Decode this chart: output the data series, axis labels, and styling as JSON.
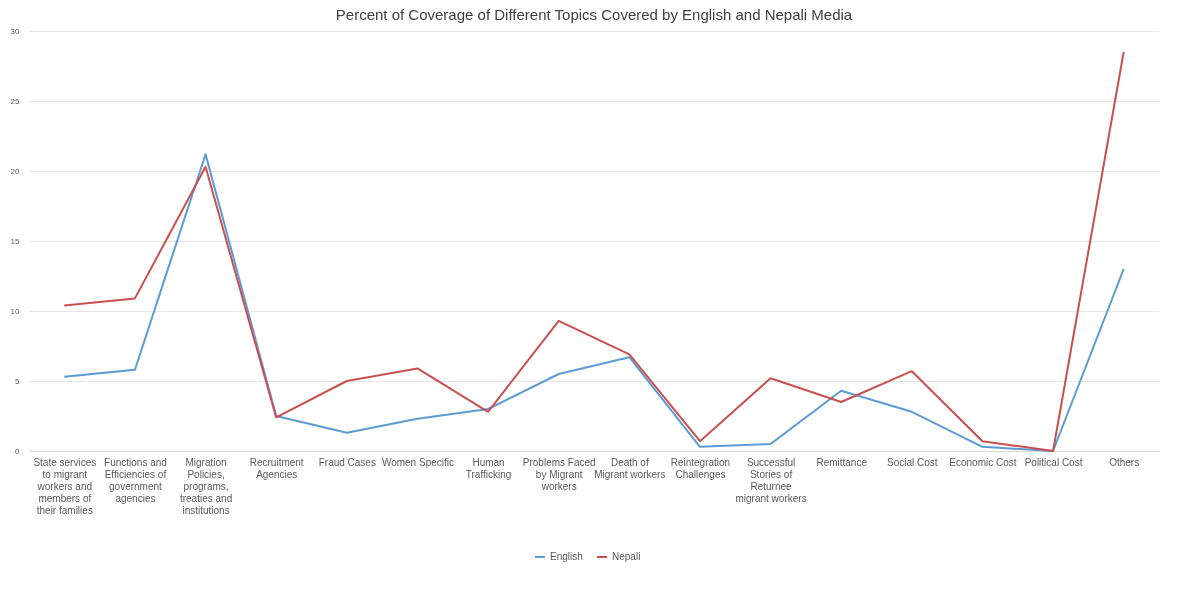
{
  "chart_data": {
    "type": "line",
    "title": "Percent of Coverage of Different Topics Covered by English and Nepali Media",
    "categories": [
      "State services to migrant workers and members of their families",
      "Functions and Efficiencies of government agencies",
      "Migration Policies, programs, treaties and institutions",
      "Recruitment Agencies",
      "Fraud Cases",
      "Women Specific",
      "Human Trafficking",
      "Problems Faced by Migrant workers",
      "Death of Migrant workers",
      "Reintegration Challenges",
      "Successful Stories of Returnee migrant workers",
      "Remittance",
      "Social Cost",
      "Economic Cost",
      "Political Cost",
      "Others"
    ],
    "series": [
      {
        "name": "English",
        "color": "#5b9bd5",
        "values": [
          5.3,
          5.8,
          21.2,
          2.5,
          1.3,
          2.3,
          3.0,
          5.5,
          6.7,
          0.3,
          0.5,
          4.3,
          2.8,
          0.3,
          0,
          13.0
        ]
      },
      {
        "name": "Nepali",
        "color": "#c9504f",
        "values": [
          10.4,
          10.9,
          20.3,
          2.4,
          5.0,
          5.9,
          2.8,
          9.3,
          6.9,
          0.7,
          5.2,
          3.5,
          5.7,
          0.7,
          0,
          28.5
        ]
      }
    ],
    "ylim": [
      0,
      30
    ],
    "yticks": [
      0,
      5,
      10,
      15,
      20,
      25,
      30
    ],
    "grid": "y",
    "legend": "bottom",
    "marker": "none",
    "line_style": "solid"
  }
}
